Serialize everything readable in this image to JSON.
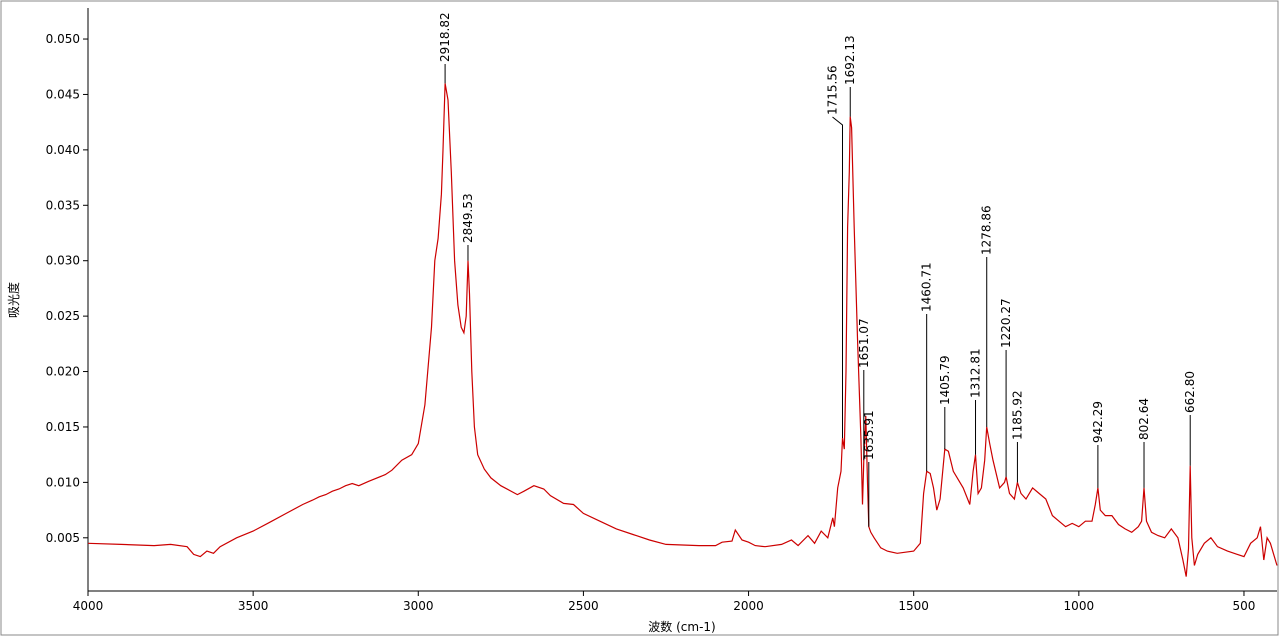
{
  "chart_data": {
    "type": "line",
    "x_label": "波数 (cm-1)",
    "y_label": "吸光度",
    "color": "#cc0000",
    "xlim": [
      4000,
      400
    ],
    "ylim": [
      0.0002,
      0.0528
    ],
    "xticks": [
      4000,
      3500,
      3000,
      2500,
      2000,
      1500,
      1000,
      500
    ],
    "yticks": [
      0.005,
      {
        "value": 0.01,
        "label": "0.010"
      },
      0.015,
      {
        "value": 0.02,
        "label": "0.020"
      },
      0.025,
      {
        "value": 0.03,
        "label": "0.030"
      },
      0.035,
      {
        "value": 0.04,
        "label": "0.040"
      },
      0.045,
      {
        "value": 0.05,
        "label": "0.050"
      }
    ],
    "grid": false,
    "x": [
      4000,
      3900,
      3800,
      3750,
      3700,
      3680,
      3660,
      3640,
      3620,
      3600,
      3550,
      3500,
      3450,
      3400,
      3350,
      3320,
      3300,
      3280,
      3260,
      3240,
      3220,
      3200,
      3180,
      3150,
      3100,
      3080,
      3050,
      3020,
      3000,
      2980,
      2960,
      2950,
      2940,
      2930,
      2925,
      2918.82,
      2910,
      2900,
      2890,
      2880,
      2870,
      2862,
      2855,
      2849.53,
      2845,
      2838,
      2830,
      2820,
      2800,
      2780,
      2750,
      2700,
      2680,
      2650,
      2620,
      2600,
      2560,
      2530,
      2500,
      2450,
      2400,
      2350,
      2300,
      2250,
      2150,
      2100,
      2080,
      2050,
      2040,
      2020,
      2000,
      1980,
      1950,
      1900,
      1870,
      1850,
      1820,
      1800,
      1780,
      1760,
      1745,
      1740,
      1730,
      1720,
      1715.56,
      1710,
      1705,
      1700,
      1695,
      1692.13,
      1688,
      1680,
      1670,
      1660,
      1655,
      1651.07,
      1645,
      1640,
      1635.91,
      1630,
      1620,
      1600,
      1580,
      1550,
      1500,
      1480,
      1470,
      1460.71,
      1450,
      1440,
      1430,
      1420,
      1405.79,
      1395,
      1380,
      1350,
      1330,
      1320,
      1312.81,
      1305,
      1295,
      1285,
      1278.86,
      1270,
      1260,
      1240,
      1225,
      1220.27,
      1210,
      1195,
      1185.92,
      1175,
      1160,
      1140,
      1120,
      1100,
      1080,
      1060,
      1040,
      1020,
      1000,
      980,
      960,
      950,
      942.29,
      935,
      920,
      900,
      880,
      860,
      840,
      820,
      810,
      802.64,
      795,
      780,
      760,
      740,
      720,
      700,
      685,
      675,
      668,
      662.8,
      658,
      650,
      640,
      620,
      600,
      580,
      550,
      520,
      500,
      480,
      460,
      450,
      440,
      430,
      420,
      410,
      400
    ],
    "values": [
      0.0045,
      0.0044,
      0.0043,
      0.0044,
      0.0042,
      0.0035,
      0.0033,
      0.0038,
      0.0036,
      0.0042,
      0.005,
      0.0056,
      0.0064,
      0.0072,
      0.008,
      0.0084,
      0.0087,
      0.0089,
      0.0092,
      0.0094,
      0.0097,
      0.0099,
      0.0097,
      0.0101,
      0.0107,
      0.0111,
      0.012,
      0.0125,
      0.0135,
      0.017,
      0.024,
      0.03,
      0.032,
      0.036,
      0.04,
      0.046,
      0.0445,
      0.038,
      0.03,
      0.026,
      0.024,
      0.0235,
      0.025,
      0.03,
      0.027,
      0.02,
      0.015,
      0.0125,
      0.0112,
      0.0104,
      0.0097,
      0.0089,
      0.0092,
      0.0097,
      0.0094,
      0.0088,
      0.0081,
      0.008,
      0.0072,
      0.0065,
      0.0058,
      0.0053,
      0.0048,
      0.0044,
      0.0043,
      0.0043,
      0.0046,
      0.0047,
      0.0057,
      0.0048,
      0.0046,
      0.0043,
      0.0042,
      0.0044,
      0.0048,
      0.0043,
      0.0052,
      0.0045,
      0.0056,
      0.005,
      0.0068,
      0.006,
      0.0095,
      0.011,
      0.014,
      0.013,
      0.02,
      0.033,
      0.038,
      0.043,
      0.042,
      0.033,
      0.023,
      0.014,
      0.008,
      0.012,
      0.016,
      0.01,
      0.006,
      0.0055,
      0.005,
      0.0041,
      0.0038,
      0.0036,
      0.0038,
      0.0045,
      0.009,
      0.011,
      0.0108,
      0.0095,
      0.0075,
      0.0085,
      0.013,
      0.0128,
      0.011,
      0.0095,
      0.008,
      0.011,
      0.0125,
      0.009,
      0.0095,
      0.012,
      0.015,
      0.0135,
      0.012,
      0.0095,
      0.01,
      0.0105,
      0.009,
      0.0085,
      0.01,
      0.009,
      0.0085,
      0.0095,
      0.009,
      0.0085,
      0.007,
      0.0065,
      0.006,
      0.0063,
      0.006,
      0.0065,
      0.0065,
      0.008,
      0.0095,
      0.0075,
      0.007,
      0.007,
      0.0062,
      0.0058,
      0.0055,
      0.006,
      0.0065,
      0.0095,
      0.0065,
      0.0055,
      0.0052,
      0.005,
      0.0058,
      0.005,
      0.003,
      0.0015,
      0.004,
      0.0115,
      0.005,
      0.0025,
      0.0035,
      0.0045,
      0.005,
      0.0042,
      0.0038,
      0.0035,
      0.0033,
      0.0045,
      0.005,
      0.006,
      0.003,
      0.005,
      0.0045,
      0.0035,
      0.0025
    ],
    "peaks": [
      {
        "value": 2918.82,
        "label": "2918.82"
      },
      {
        "value": 2849.53,
        "label": "2849.53"
      },
      {
        "value": 1715.56,
        "label": "1715.56"
      },
      {
        "value": 1692.13,
        "label": "1692.13"
      },
      {
        "value": 1651.07,
        "label": "1651.07"
      },
      {
        "value": 1635.91,
        "label": "1635.91"
      },
      {
        "value": 1460.71,
        "label": "1460.71"
      },
      {
        "value": 1405.79,
        "label": "1405.79"
      },
      {
        "value": 1312.81,
        "label": "1312.81"
      },
      {
        "value": 1278.86,
        "label": "1278.86"
      },
      {
        "value": 1220.27,
        "label": "1220.27"
      },
      {
        "value": 1185.92,
        "label": "1185.92"
      },
      {
        "value": 942.29,
        "label": "942.29"
      },
      {
        "value": 802.64,
        "label": "802.64"
      },
      {
        "value": 662.8,
        "label": "662.80"
      }
    ]
  }
}
